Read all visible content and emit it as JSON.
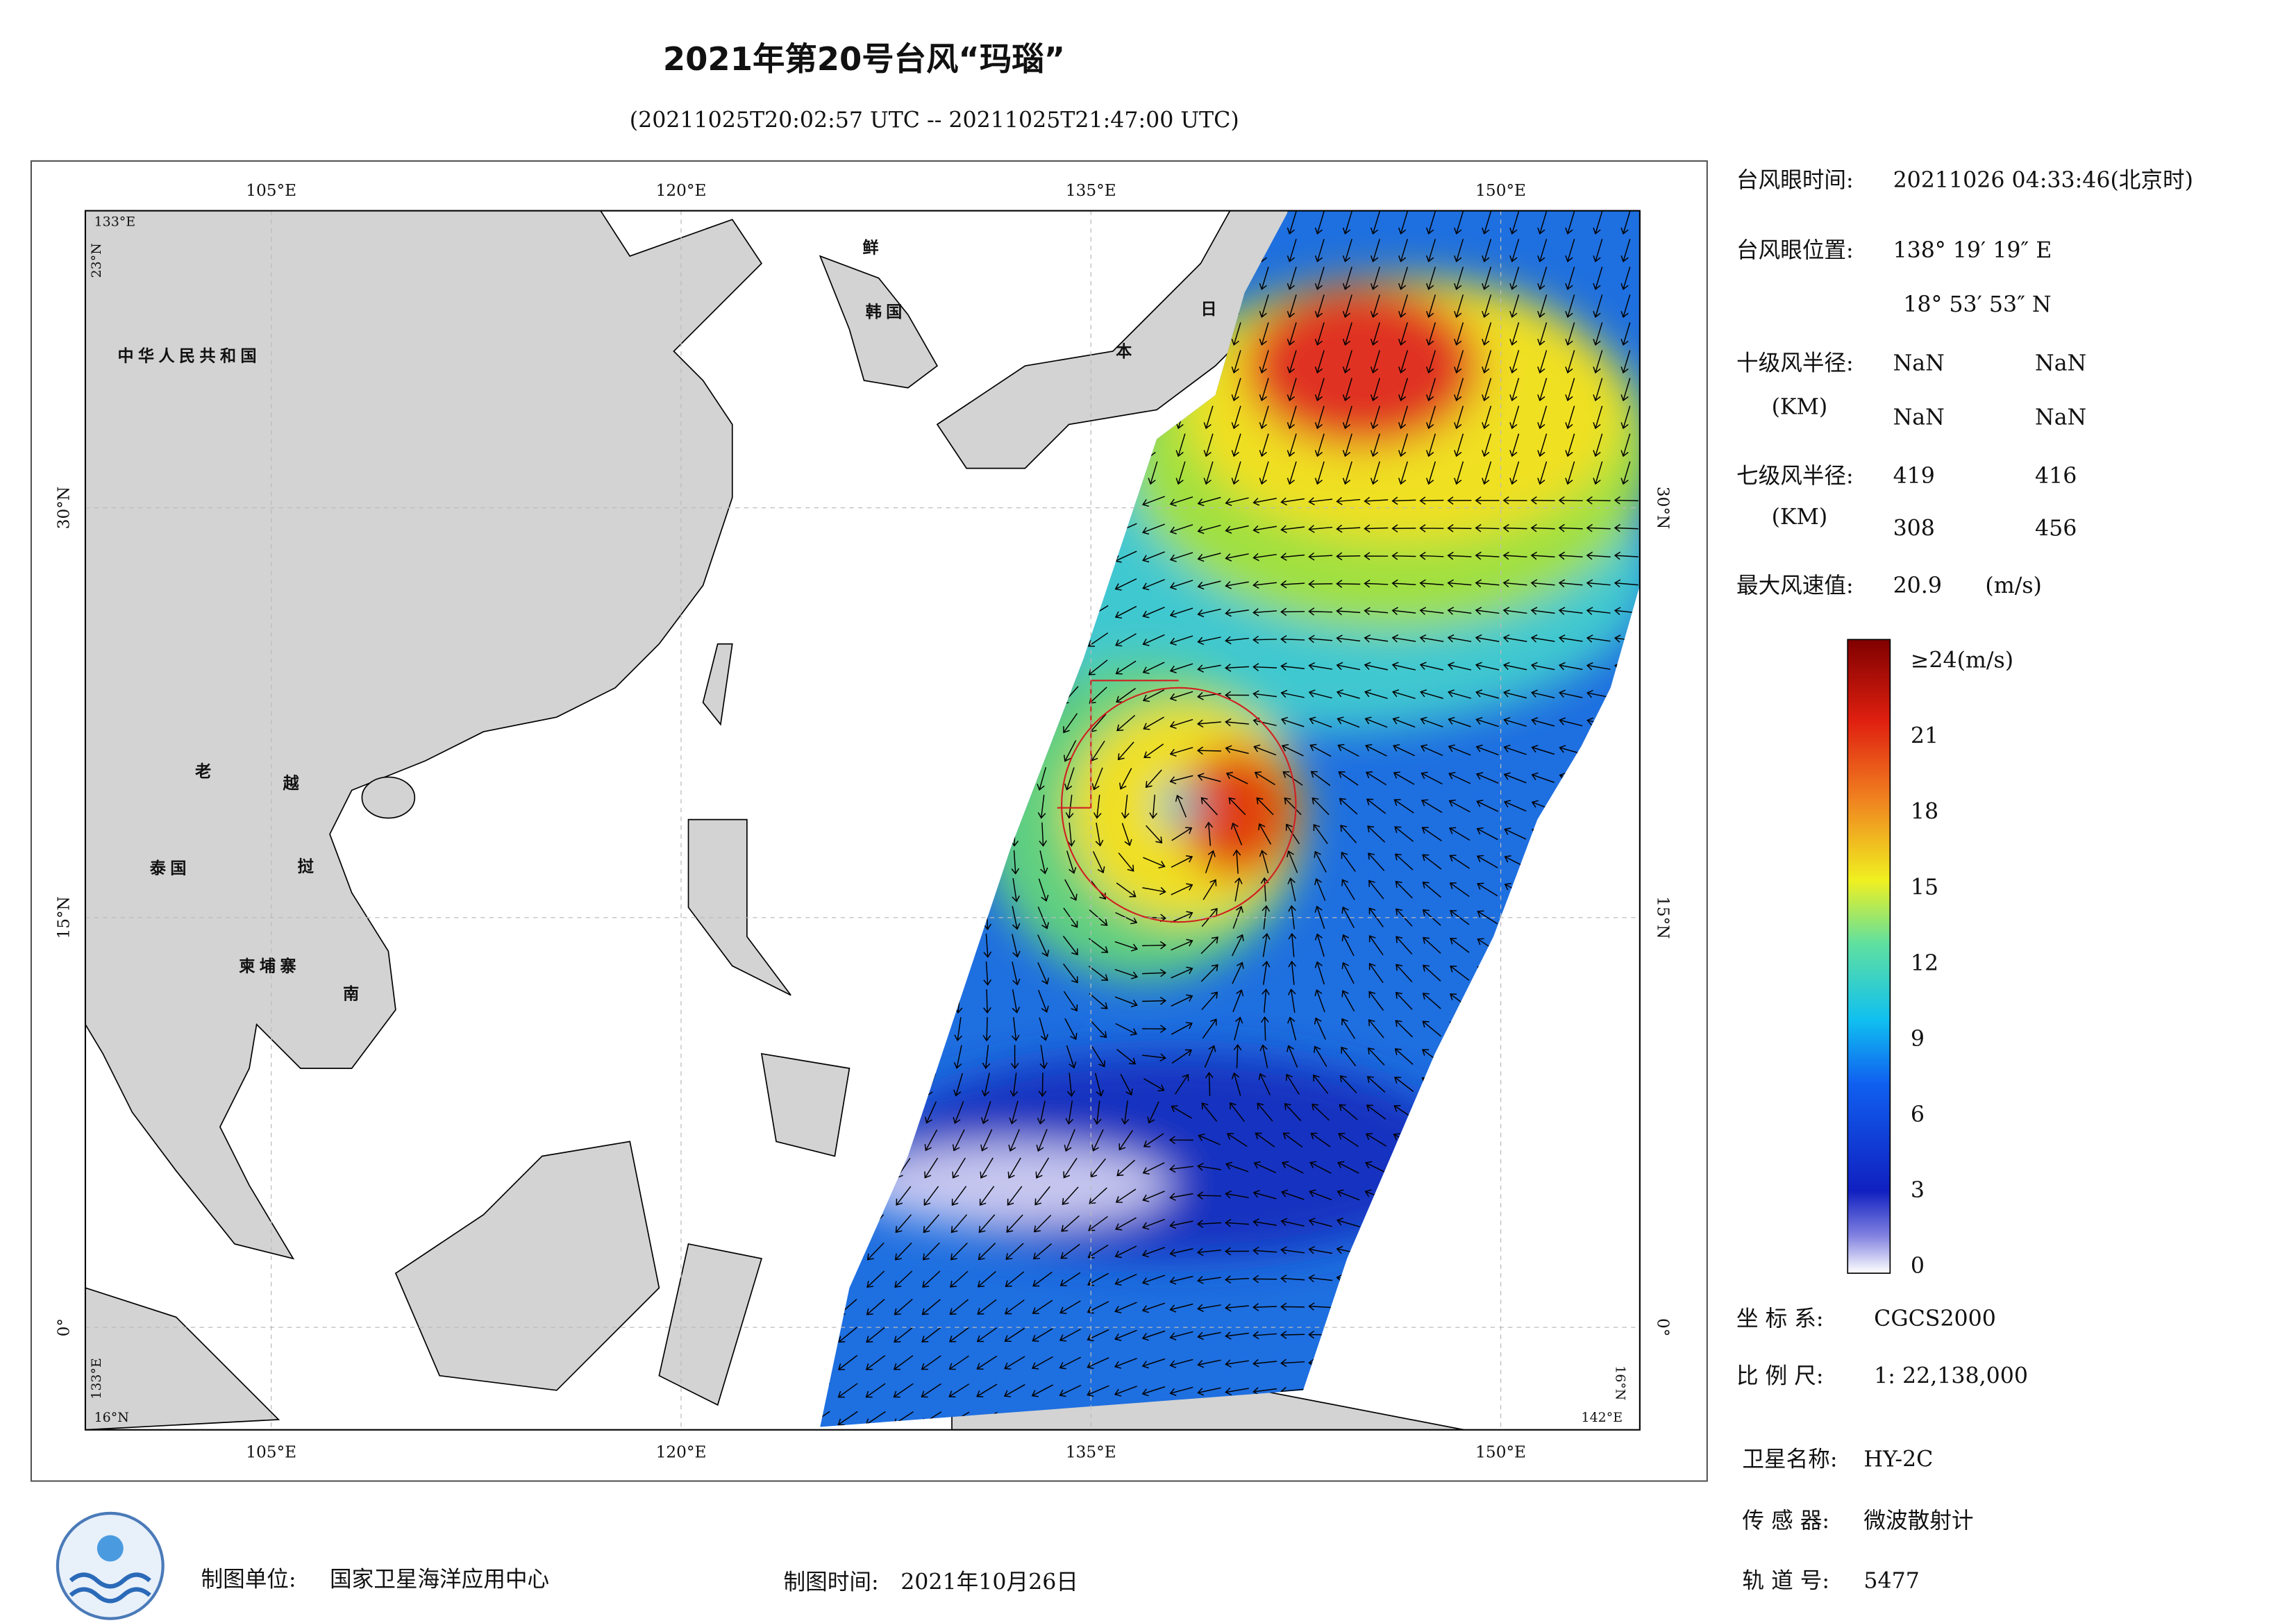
{
  "header": {
    "title": "2021年第20号台风“玛瑙”",
    "subtitle": "(20211025T20:02:57 UTC -- 20211025T21:47:00 UTC)"
  },
  "map": {
    "lon_labels": [
      "105°E",
      "120°E",
      "135°E",
      "150°E"
    ],
    "lat_labels": [
      "30°N",
      "15°N",
      "0°"
    ],
    "corner_labels": [
      "133°E",
      "23°N",
      "133°E",
      "16°N",
      "142°E",
      "16°N"
    ],
    "place_labels": [
      "中华人民共和国",
      "鲜",
      "韩国",
      "日",
      "本",
      "老",
      "越",
      "泰国",
      "挝",
      "柬埔寨",
      "南"
    ]
  },
  "info": {
    "eye_time": {
      "label": "台风眼时间:",
      "value": "20211026 04:33:46(北京时)"
    },
    "eye_position": {
      "label": "台风眼位置:",
      "lon": "138° 19′ 19″ E",
      "lat": "18° 53′ 53″ N"
    },
    "r10": {
      "label": "十级风半径:",
      "unit": "(KM)",
      "values": [
        "NaN",
        "NaN",
        "NaN",
        "NaN"
      ]
    },
    "r7": {
      "label": "七级风半径:",
      "unit": "(KM)",
      "values": [
        419,
        416,
        308,
        456
      ]
    },
    "max_wind": {
      "label": "最大风速值:",
      "value": 20.9,
      "unit": "(m/s)"
    }
  },
  "colorbar": {
    "labels": [
      "≥24(m/s)",
      "21",
      "18",
      "15",
      "12",
      "9",
      "6",
      "3",
      "0"
    ]
  },
  "meta": [
    {
      "label": "坐 标 系:",
      "value": "CGCS2000"
    },
    {
      "label": "比 例 尺:",
      "value": "1: 22,138,000"
    },
    {
      "label": "卫星名称:",
      "value": "HY-2C"
    },
    {
      "label": "传 感 器:",
      "value": "微波散射计"
    },
    {
      "label": "轨 道 号:",
      "value": "5477"
    }
  ],
  "footer": {
    "unit_label": "制图单位:",
    "unit": "国家卫星海洋应用中心",
    "time_label": "制图时间:",
    "time": "2021年10月26日"
  }
}
